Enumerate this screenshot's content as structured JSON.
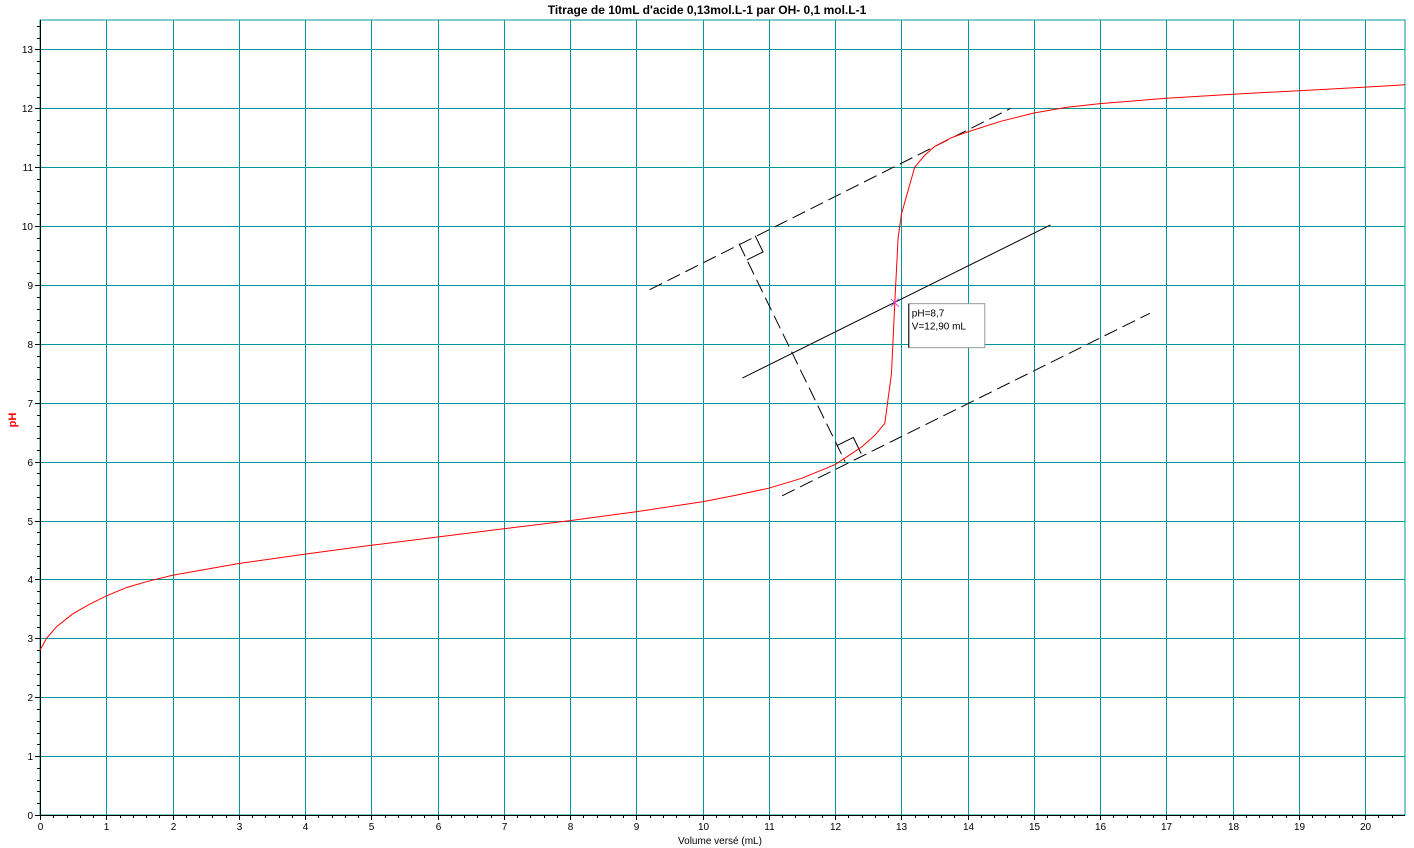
{
  "chart_data": {
    "type": "line",
    "title": "Titrage de 10mL d'acide 0,13mol.L-1  par OH-  0,1 mol.L-1",
    "xlabel": "Volume versé (mL)",
    "ylabel": "pH",
    "xlim": [
      0,
      20.6
    ],
    "ylim": [
      0,
      13.5
    ],
    "x_ticks": [
      "0",
      "1",
      "2",
      "3",
      "4",
      "5",
      "6",
      "7",
      "8",
      "9",
      "10",
      "11",
      "12",
      "13",
      "14",
      "15",
      "16",
      "17",
      "18",
      "19",
      "20"
    ],
    "y_ticks": [
      "0",
      "1",
      "2",
      "3",
      "4",
      "5",
      "6",
      "7",
      "8",
      "9",
      "10",
      "11",
      "12",
      "13"
    ],
    "grid": true,
    "series": [
      {
        "values_x": [
          0,
          0.1,
          0.25,
          0.5,
          0.75,
          1.0,
          1.3,
          1.6,
          2.0,
          2.5,
          3.0,
          4.0,
          5.0,
          6.0,
          7.0,
          8.0,
          9.0,
          10.0,
          10.5,
          11.0,
          11.5,
          12.0,
          12.2,
          12.4,
          12.5,
          12.6,
          12.75,
          12.85,
          12.9,
          12.95,
          13.0,
          13.1,
          13.2,
          13.35,
          13.5,
          13.75,
          14.0,
          14.5,
          15.0,
          15.5,
          16.0,
          17.0,
          18.0,
          19.0,
          20.0,
          20.6
        ],
        "values_y": [
          2.8,
          3.0,
          3.2,
          3.42,
          3.58,
          3.72,
          3.86,
          3.96,
          4.07,
          4.17,
          4.27,
          4.43,
          4.58,
          4.72,
          4.86,
          5.0,
          5.15,
          5.32,
          5.43,
          5.55,
          5.72,
          5.95,
          6.1,
          6.25,
          6.35,
          6.45,
          6.65,
          7.5,
          8.7,
          9.8,
          10.2,
          10.6,
          11.0,
          11.2,
          11.35,
          11.5,
          11.6,
          11.78,
          11.92,
          12.02,
          12.08,
          12.17,
          12.24,
          12.3,
          12.36,
          12.4
        ],
        "color": "#ff0000"
      }
    ],
    "construction": {
      "upper_tangent": [
        [
          9.2,
          8.92
        ],
        [
          14.65,
          12.0
        ]
      ],
      "lower_tangent": [
        [
          11.2,
          5.42
        ],
        [
          16.75,
          8.52
        ]
      ],
      "median": [
        [
          10.6,
          7.42
        ],
        [
          15.25,
          10.02
        ]
      ],
      "perpendicular": [
        [
          10.55,
          9.7
        ],
        [
          12.15,
          6.0
        ]
      ],
      "color": "#000000"
    },
    "equivalence_point": {
      "x": 12.9,
      "y": 8.7,
      "marker_color": "#cc44cc"
    },
    "annotation": {
      "line1": "pH=8,7",
      "line2": "V=12,90 mL"
    },
    "grid_color": "#009999",
    "axis_color": "#000000"
  }
}
